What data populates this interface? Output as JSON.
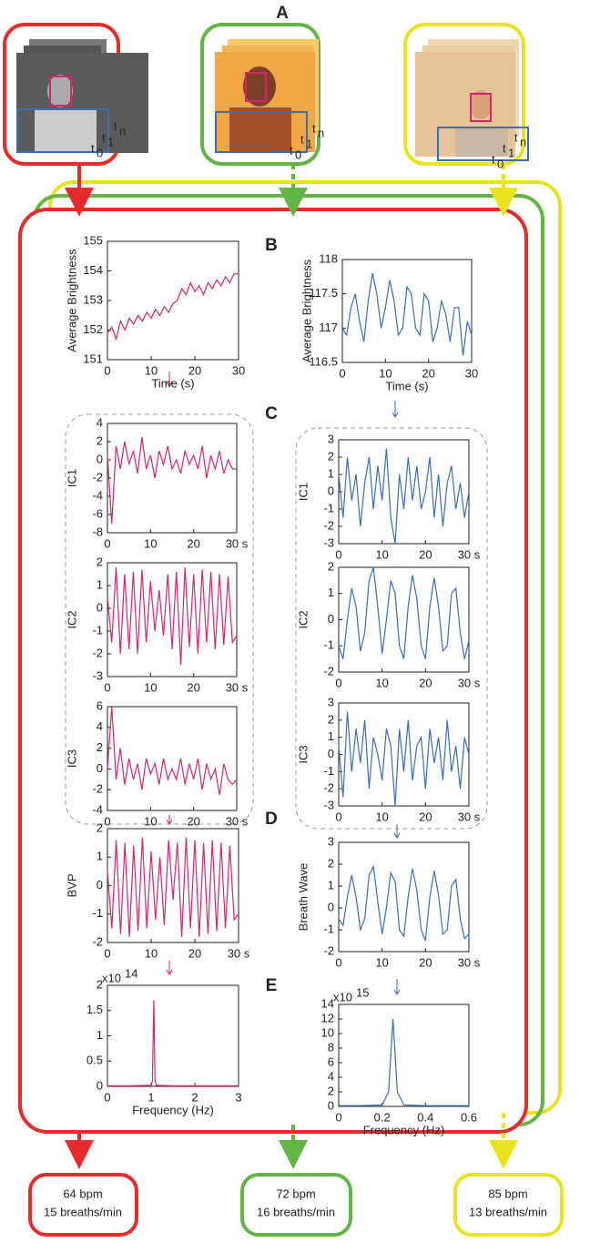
{
  "panel_labels": [
    "A",
    "B",
    "C",
    "D",
    "E"
  ],
  "frame_label_base": "t",
  "frame_label_subscripts": [
    "0",
    "1",
    "n"
  ],
  "outputs": [
    {
      "heart": "64 bpm",
      "breath": "15 breaths/min"
    },
    {
      "heart": "72 bpm",
      "breath": "16 breaths/min"
    },
    {
      "heart": "85 bpm",
      "breath": "13 breaths/min"
    }
  ],
  "chart_data": [
    {
      "type": "line",
      "ylabel": "Average Brightness",
      "xlabel": "Time (s)",
      "x": [
        0,
        1,
        2,
        3,
        4,
        5,
        6,
        7,
        8,
        9,
        10,
        11,
        12,
        13,
        14,
        15,
        16,
        17,
        18,
        19,
        20,
        21,
        22,
        23,
        24,
        25,
        26,
        27,
        28,
        29,
        30
      ],
      "series": [
        {
          "color": "#d6246e",
          "values": [
            151.9,
            152.1,
            151.7,
            152.3,
            152.0,
            152.4,
            152.2,
            152.5,
            152.3,
            152.6,
            152.4,
            152.7,
            152.5,
            152.8,
            152.6,
            152.9,
            153.0,
            153.4,
            153.2,
            153.6,
            153.3,
            153.5,
            153.2,
            153.6,
            153.4,
            153.7,
            153.5,
            153.8,
            153.6,
            153.9,
            153.9
          ]
        }
      ],
      "xlim": [
        0,
        30
      ],
      "ylim": [
        151,
        155
      ],
      "xticks": [
        0,
        10,
        20,
        30
      ],
      "yticks": [
        151,
        152,
        153,
        154,
        155
      ]
    },
    {
      "type": "line",
      "ylabel": "Average Brightness",
      "xlabel": "Time (s)",
      "x": [
        0,
        1,
        2,
        3,
        4,
        5,
        6,
        7,
        8,
        9,
        10,
        11,
        12,
        13,
        14,
        15,
        16,
        17,
        18,
        19,
        20,
        21,
        22,
        23,
        24,
        25,
        26,
        27,
        28,
        29,
        30
      ],
      "series": [
        {
          "color": "#3a6fb7",
          "values": [
            117.0,
            116.9,
            117.3,
            117.5,
            117.1,
            116.8,
            117.4,
            117.8,
            117.5,
            117.0,
            117.3,
            117.7,
            117.4,
            116.9,
            117.0,
            117.6,
            117.5,
            117.0,
            116.9,
            117.5,
            117.4,
            116.8,
            117.0,
            117.4,
            117.2,
            116.8,
            117.3,
            117.3,
            116.6,
            117.1,
            116.9
          ]
        }
      ],
      "xlim": [
        0,
        30
      ],
      "ylim": [
        116.5,
        118
      ],
      "xticks": [
        0,
        10,
        20,
        30
      ],
      "yticks": [
        116.5,
        117,
        117.5,
        118
      ]
    },
    {
      "type": "line",
      "ylabel": "IC1",
      "x": [
        0,
        1,
        2,
        3,
        4,
        5,
        6,
        7,
        8,
        9,
        10,
        11,
        12,
        13,
        14,
        15,
        16,
        17,
        18,
        19,
        20,
        21,
        22,
        23,
        24,
        25,
        26,
        27,
        28,
        29,
        30
      ],
      "series": [
        {
          "color": "#d6246e",
          "values": [
            0.5,
            -7,
            1.5,
            -1,
            2,
            -0.5,
            1,
            -1.5,
            2.5,
            -1,
            0.5,
            -2,
            1,
            -0.5,
            1.5,
            -1,
            0,
            -1.5,
            1,
            -0.5,
            0.5,
            -1,
            1.5,
            -2,
            0.5,
            -1,
            1,
            -1.5,
            0,
            -1,
            -1
          ]
        }
      ],
      "xlim": [
        0,
        30
      ],
      "ylim": [
        -8,
        4
      ],
      "xticks": [
        0,
        10,
        20,
        {
          "value": 30,
          "label": "30 s"
        }
      ],
      "yticks": [
        -8,
        -6,
        -4,
        -2,
        0,
        2,
        4
      ]
    },
    {
      "type": "line",
      "ylabel": "IC2",
      "x": [
        0,
        1,
        2,
        3,
        4,
        5,
        6,
        7,
        8,
        9,
        10,
        11,
        12,
        13,
        14,
        15,
        16,
        17,
        18,
        19,
        20,
        21,
        22,
        23,
        24,
        25,
        26,
        27,
        28,
        29,
        30
      ],
      "series": [
        {
          "color": "#d6246e",
          "values": [
            0.5,
            -1.5,
            1.8,
            -2,
            1.5,
            -1.8,
            1.6,
            -2,
            1.7,
            -1.5,
            1.2,
            -1,
            0.8,
            -1.2,
            1.5,
            -1.8,
            1.6,
            -2.5,
            1.8,
            -1.7,
            1.5,
            -2,
            1.7,
            -1.5,
            1.6,
            -1.8,
            1.5,
            -1.6,
            1.4,
            -1.5,
            -1.2
          ]
        }
      ],
      "xlim": [
        0,
        30
      ],
      "ylim": [
        -3,
        2
      ],
      "xticks": [
        0,
        10,
        20,
        {
          "value": 30,
          "label": "30 s"
        }
      ],
      "yticks": [
        -3,
        -2,
        -1,
        0,
        1,
        2
      ]
    },
    {
      "type": "line",
      "ylabel": "IC3",
      "x": [
        0,
        1,
        2,
        3,
        4,
        5,
        6,
        7,
        8,
        9,
        10,
        11,
        12,
        13,
        14,
        15,
        16,
        17,
        18,
        19,
        20,
        21,
        22,
        23,
        24,
        25,
        26,
        27,
        28,
        29,
        30
      ],
      "series": [
        {
          "color": "#d6246e",
          "values": [
            0,
            6,
            -1,
            2,
            -1.5,
            1,
            -1,
            0.5,
            -2,
            1,
            -0.5,
            0.5,
            -1.5,
            1,
            -1,
            0,
            -1,
            1,
            -1.5,
            0.5,
            -1,
            1,
            -2,
            0.5,
            -1,
            0,
            -2.5,
            0.5,
            -1,
            -1.5,
            -1
          ]
        }
      ],
      "xlim": [
        0,
        30
      ],
      "ylim": [
        -4,
        6
      ],
      "xticks": [
        0,
        10,
        20,
        {
          "value": 30,
          "label": "30 s"
        }
      ],
      "yticks": [
        -4,
        -2,
        0,
        2,
        4,
        6
      ]
    },
    {
      "type": "line",
      "ylabel": "IC1",
      "x": [
        0,
        1,
        2,
        3,
        4,
        5,
        6,
        7,
        8,
        9,
        10,
        11,
        12,
        13,
        14,
        15,
        16,
        17,
        18,
        19,
        20,
        21,
        22,
        23,
        24,
        25,
        26,
        27,
        28,
        29,
        30
      ],
      "series": [
        {
          "color": "#3a6fb7",
          "values": [
            1,
            -1.5,
            2,
            -0.5,
            1,
            -2,
            0.5,
            2,
            -1,
            1.5,
            -0.5,
            2.5,
            -1.5,
            -3,
            1,
            -1,
            2,
            -0.5,
            1.5,
            -1,
            0,
            2,
            -1.5,
            1,
            -2,
            0.5,
            1.5,
            -1,
            0.5,
            -1.5,
            0
          ]
        }
      ],
      "xlim": [
        0,
        30
      ],
      "ylim": [
        -3,
        3
      ],
      "xticks": [
        0,
        10,
        20,
        {
          "value": 30,
          "label": "30 s"
        }
      ],
      "yticks": [
        -3,
        -2,
        -1,
        0,
        1,
        2,
        3
      ]
    },
    {
      "type": "line",
      "ylabel": "IC2",
      "x": [
        0,
        1,
        2,
        3,
        4,
        5,
        6,
        7,
        8,
        9,
        10,
        11,
        12,
        13,
        14,
        15,
        16,
        17,
        18,
        19,
        20,
        21,
        22,
        23,
        24,
        25,
        26,
        27,
        28,
        29,
        30
      ],
      "series": [
        {
          "color": "#3a6fb7",
          "values": [
            -1,
            -1.5,
            0,
            1.2,
            0.5,
            -1.2,
            -0.5,
            1.5,
            2,
            0.5,
            -1.3,
            0,
            1.5,
            1,
            -1,
            -1.5,
            0.5,
            1.7,
            0.8,
            -1,
            -1.5,
            0.5,
            1.6,
            0.5,
            -1.2,
            -1,
            1,
            1.2,
            -0.5,
            -1.5,
            -0.8
          ]
        }
      ],
      "xlim": [
        0,
        30
      ],
      "ylim": [
        -2,
        2
      ],
      "xticks": [
        0,
        10,
        20,
        {
          "value": 30,
          "label": "30 s"
        }
      ],
      "yticks": [
        -2,
        -1,
        0,
        1,
        2
      ]
    },
    {
      "type": "line",
      "ylabel": "IC3",
      "x": [
        0,
        1,
        2,
        3,
        4,
        5,
        6,
        7,
        8,
        9,
        10,
        11,
        12,
        13,
        14,
        15,
        16,
        17,
        18,
        19,
        20,
        21,
        22,
        23,
        24,
        25,
        26,
        27,
        28,
        29,
        30
      ],
      "series": [
        {
          "color": "#3a6fb7",
          "values": [
            0.5,
            -2.5,
            2.5,
            -1,
            1.5,
            -0.5,
            2,
            -2,
            1,
            0,
            -1.5,
            1.5,
            0.5,
            -3,
            1.5,
            -1,
            2,
            -1.5,
            0.5,
            1,
            -2,
            1.5,
            -0.5,
            1,
            -1.5,
            2,
            -1,
            0.5,
            -2,
            1,
            0
          ]
        }
      ],
      "xlim": [
        0,
        30
      ],
      "ylim": [
        -3,
        3
      ],
      "xticks": [
        0,
        10,
        20,
        {
          "value": 30,
          "label": "30 s"
        }
      ],
      "yticks": [
        -3,
        -2,
        -1,
        0,
        1,
        2,
        3
      ]
    },
    {
      "type": "line",
      "ylabel": "BVP",
      "x": [
        0,
        1,
        2,
        3,
        4,
        5,
        6,
        7,
        8,
        9,
        10,
        11,
        12,
        13,
        14,
        15,
        16,
        17,
        18,
        19,
        20,
        21,
        22,
        23,
        24,
        25,
        26,
        27,
        28,
        29,
        30
      ],
      "series": [
        {
          "color": "#d6246e",
          "values": [
            0.5,
            -1.5,
            1.6,
            -1.7,
            1.5,
            -1.8,
            1.4,
            -1.6,
            1.7,
            -1.5,
            1.2,
            -1.2,
            1,
            -1.4,
            1.6,
            -0.5,
            1.5,
            -1.8,
            1.7,
            -1.5,
            1.6,
            -1.8,
            1.5,
            -1.7,
            1.6,
            -1.6,
            1.5,
            -1.5,
            1.4,
            -1.2,
            -1
          ]
        }
      ],
      "xlim": [
        0,
        30
      ],
      "ylim": [
        -2,
        2
      ],
      "xticks": [
        0,
        10,
        20,
        {
          "value": 30,
          "label": "30 s"
        }
      ],
      "yticks": [
        -2,
        -1,
        0,
        1,
        2
      ]
    },
    {
      "type": "line",
      "ylabel": "Breath Wave",
      "x": [
        0,
        1,
        2,
        3,
        4,
        5,
        6,
        7,
        8,
        9,
        10,
        11,
        12,
        13,
        14,
        15,
        16,
        17,
        18,
        19,
        20,
        21,
        22,
        23,
        24,
        25,
        26,
        27,
        28,
        29,
        30
      ],
      "series": [
        {
          "color": "#3a6fb7",
          "values": [
            -0.5,
            -0.8,
            0.5,
            1.5,
            0.5,
            -1,
            -0.5,
            1.5,
            1.9,
            0.3,
            -1.2,
            0,
            1.6,
            1.2,
            -1,
            -1.3,
            0.5,
            1.8,
            0.8,
            -1,
            -1.5,
            0.5,
            1.7,
            0.6,
            -1.2,
            -1,
            1,
            1.3,
            -0.5,
            -1.4,
            -1.2
          ]
        }
      ],
      "xlim": [
        0,
        30
      ],
      "ylim": [
        -2,
        3
      ],
      "xticks": [
        0,
        10,
        20,
        {
          "value": 30,
          "label": "30 s"
        }
      ],
      "yticks": [
        -2,
        -1,
        0,
        1,
        2,
        3
      ]
    },
    {
      "type": "line",
      "xlabel": "Frequency (Hz)",
      "y_multiplier": {
        "base": "x10",
        "exponent": "14"
      },
      "x": [
        0,
        0.5,
        1,
        1.03,
        1.06,
        1.09,
        1.12,
        1.5,
        2,
        3
      ],
      "series": [
        {
          "color": "#d6246e",
          "values": [
            0.01,
            0.01,
            0.02,
            0.1,
            1.7,
            0.1,
            0.02,
            0.01,
            0.01,
            0.01
          ]
        }
      ],
      "xlim": [
        0,
        3
      ],
      "ylim": [
        0,
        2
      ],
      "xticks": [
        0,
        1,
        2,
        3
      ],
      "yticks": [
        0,
        0.5,
        1,
        1.5,
        2
      ]
    },
    {
      "type": "line",
      "xlabel": "Frequency (Hz)",
      "y_multiplier": {
        "base": "x10",
        "exponent": "15"
      },
      "x": [
        0,
        0.1,
        0.2,
        0.23,
        0.25,
        0.27,
        0.3,
        0.4,
        0.6
      ],
      "series": [
        {
          "color": "#3a6fb7",
          "values": [
            0.1,
            0.1,
            0.2,
            2,
            12,
            2,
            0.2,
            0.1,
            0.1
          ]
        }
      ],
      "xlim": [
        0,
        0.6
      ],
      "ylim": [
        0,
        14
      ],
      "xticks": [
        0,
        0.2,
        0.4,
        0.6
      ],
      "yticks": [
        0,
        2,
        4,
        6,
        8,
        10,
        12,
        14
      ]
    }
  ]
}
